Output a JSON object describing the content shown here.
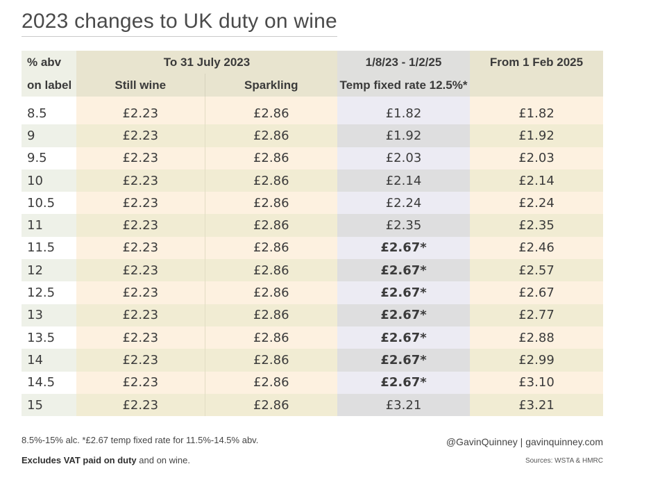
{
  "title": "2023 changes to UK duty on wine",
  "headers": {
    "abv_line1": "% abv",
    "abv_line2": "on label",
    "group_to_july": "To 31 July 2023",
    "still": "Still wine",
    "sparkling": "Sparkling",
    "temp_line1": "1/8/23 - 1/2/25",
    "temp_line2": "Temp fixed rate 12.5%*",
    "from_feb": "From 1 Feb 2025"
  },
  "rows": [
    {
      "abv": "8.5",
      "still": "£2.23",
      "sparkling": "£2.86",
      "temp": "£1.82",
      "temp_bold": false,
      "from_feb": "£1.82"
    },
    {
      "abv": "9",
      "still": "£2.23",
      "sparkling": "£2.86",
      "temp": "£1.92",
      "temp_bold": false,
      "from_feb": "£1.92"
    },
    {
      "abv": "9.5",
      "still": "£2.23",
      "sparkling": "£2.86",
      "temp": "£2.03",
      "temp_bold": false,
      "from_feb": "£2.03"
    },
    {
      "abv": "10",
      "still": "£2.23",
      "sparkling": "£2.86",
      "temp": "£2.14",
      "temp_bold": false,
      "from_feb": "£2.14"
    },
    {
      "abv": "10.5",
      "still": "£2.23",
      "sparkling": "£2.86",
      "temp": "£2.24",
      "temp_bold": false,
      "from_feb": "£2.24"
    },
    {
      "abv": "11",
      "still": "£2.23",
      "sparkling": "£2.86",
      "temp": "£2.35",
      "temp_bold": false,
      "from_feb": "£2.35"
    },
    {
      "abv": "11.5",
      "still": "£2.23",
      "sparkling": "£2.86",
      "temp": "£2.67*",
      "temp_bold": true,
      "from_feb": "£2.46"
    },
    {
      "abv": "12",
      "still": "£2.23",
      "sparkling": "£2.86",
      "temp": "£2.67*",
      "temp_bold": true,
      "from_feb": "£2.57"
    },
    {
      "abv": "12.5",
      "still": "£2.23",
      "sparkling": "£2.86",
      "temp": "£2.67*",
      "temp_bold": true,
      "from_feb": "£2.67"
    },
    {
      "abv": "13",
      "still": "£2.23",
      "sparkling": "£2.86",
      "temp": "£2.67*",
      "temp_bold": true,
      "from_feb": "£2.77"
    },
    {
      "abv": "13.5",
      "still": "£2.23",
      "sparkling": "£2.86",
      "temp": "£2.67*",
      "temp_bold": true,
      "from_feb": "£2.88"
    },
    {
      "abv": "14",
      "still": "£2.23",
      "sparkling": "£2.86",
      "temp": "£2.67*",
      "temp_bold": true,
      "from_feb": "£2.99"
    },
    {
      "abv": "14.5",
      "still": "£2.23",
      "sparkling": "£2.86",
      "temp": "£2.67*",
      "temp_bold": true,
      "from_feb": "£3.10"
    },
    {
      "abv": "15",
      "still": "£2.23",
      "sparkling": "£2.86",
      "temp": "£3.21",
      "temp_bold": false,
      "from_feb": "£3.21"
    }
  ],
  "footnote": "8.5%-15% alc. *£2.67 temp fixed rate for 11.5%-14.5% abv.",
  "excludes_bold": "Excludes VAT paid on duty",
  "excludes_rest": " and on wine.",
  "credit": "@GavinQuinney  |  gavinquinney.com",
  "sources": "Sources: WSTA & HMRC",
  "colors": {
    "header_bg": "#e8e4cf",
    "row_peach": "#fdf1e0",
    "row_tan": "#f1ecd3",
    "temp_light": "#ecebf3",
    "temp_dark": "#dededf"
  }
}
